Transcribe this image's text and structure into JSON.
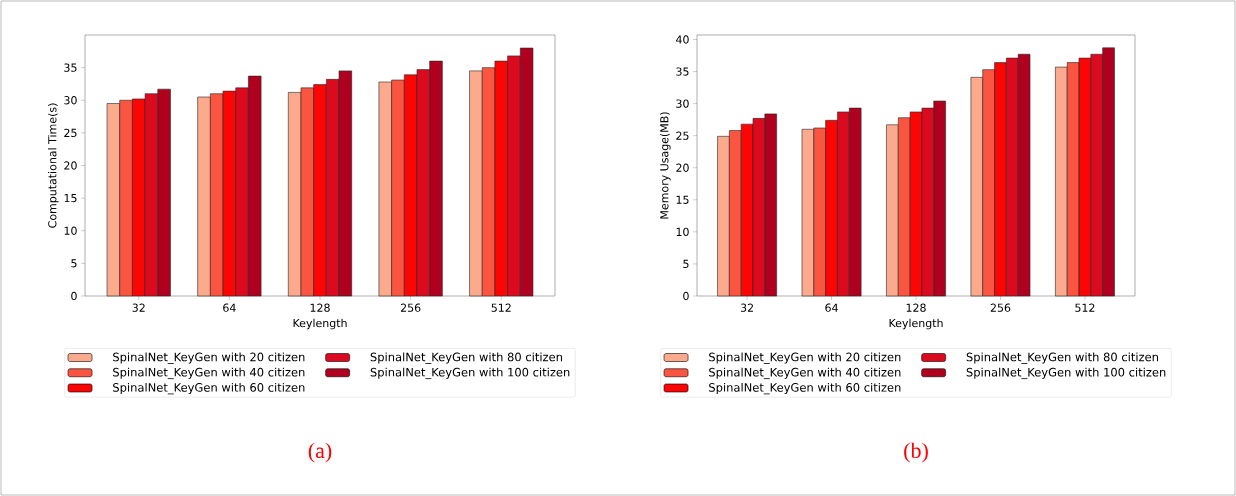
{
  "chart_data": [
    {
      "type": "bar",
      "xlabel": "Keylength",
      "ylabel": "Computational Time(s)",
      "categories": [
        "32",
        "64",
        "128",
        "256",
        "512"
      ],
      "ylim": [
        0,
        40
      ],
      "yticks": [
        0,
        5,
        10,
        15,
        20,
        25,
        30,
        35
      ],
      "legend": "bottom",
      "annotations": [
        "(a)"
      ],
      "series": [
        {
          "name": "SpinalNet_KeyGen with 20 citizen",
          "color": "#fcaa8d",
          "values": [
            29.5,
            30.5,
            31.2,
            32.8,
            34.5
          ]
        },
        {
          "name": "SpinalNet_KeyGen with 40 citizen",
          "color": "#fa5540",
          "values": [
            30.0,
            31.0,
            31.9,
            33.1,
            35.0
          ]
        },
        {
          "name": "SpinalNet_KeyGen with 60 citizen",
          "color": "#fb0505",
          "values": [
            30.2,
            31.4,
            32.4,
            33.9,
            36.0
          ]
        },
        {
          "name": "SpinalNet_KeyGen with 80 citizen",
          "color": "#dc0a1e",
          "values": [
            31.0,
            31.9,
            33.2,
            34.7,
            36.8
          ]
        },
        {
          "name": "SpinalNet_KeyGen with 100 citizen",
          "color": "#b0001f",
          "values": [
            31.7,
            33.7,
            34.5,
            36.0,
            38.0
          ]
        }
      ]
    },
    {
      "type": "bar",
      "xlabel": "Keylength",
      "ylabel": "Memory Usage(MB)",
      "categories": [
        "32",
        "64",
        "128",
        "256",
        "512"
      ],
      "ylim": [
        0,
        40.7
      ],
      "yticks": [
        0,
        5,
        10,
        15,
        20,
        25,
        30,
        35,
        40
      ],
      "legend": "bottom",
      "annotations": [
        "(b)"
      ],
      "series": [
        {
          "name": "SpinalNet_KeyGen with 20 citizen",
          "color": "#fcaa8d",
          "values": [
            24.9,
            26.0,
            26.7,
            34.1,
            35.7
          ]
        },
        {
          "name": "SpinalNet_KeyGen with 40 citizen",
          "color": "#fa5540",
          "values": [
            25.8,
            26.2,
            27.8,
            35.3,
            36.4
          ]
        },
        {
          "name": "SpinalNet_KeyGen with 60 citizen",
          "color": "#fb0505",
          "values": [
            26.8,
            27.4,
            28.7,
            36.4,
            37.1
          ]
        },
        {
          "name": "SpinalNet_KeyGen with 80 citizen",
          "color": "#dc0a1e",
          "values": [
            27.7,
            28.7,
            29.3,
            37.1,
            37.7
          ]
        },
        {
          "name": "SpinalNet_KeyGen with 100 citizen",
          "color": "#b0001f",
          "values": [
            28.4,
            29.3,
            30.4,
            37.7,
            38.7
          ]
        }
      ]
    }
  ]
}
